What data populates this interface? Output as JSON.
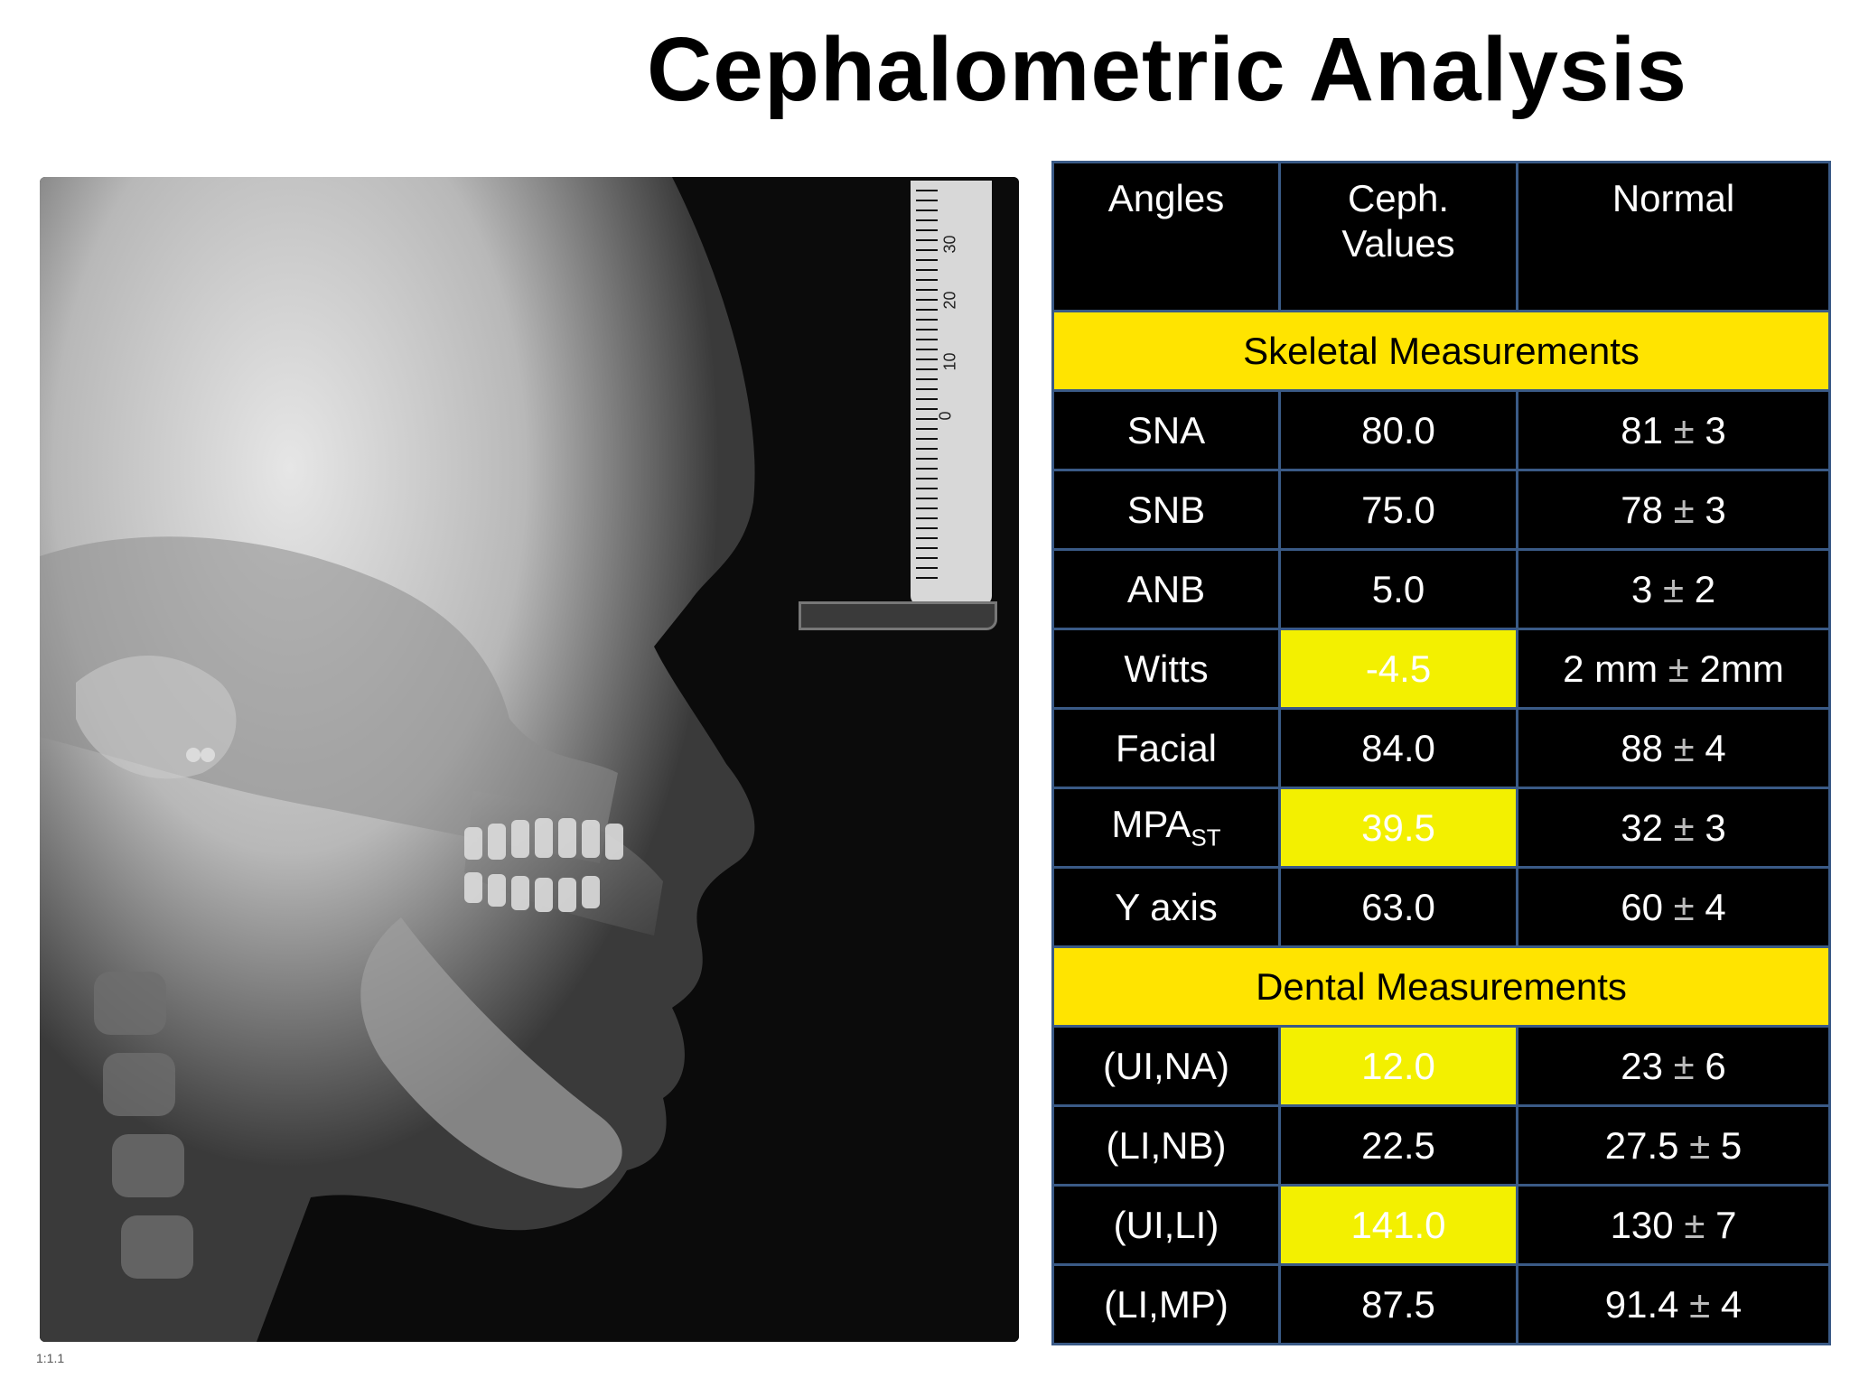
{
  "title": "Cephalometric Analysis",
  "image": {
    "ruler_labels": [
      "30",
      "20",
      "10",
      "0"
    ],
    "footer_mark": "1:1.1"
  },
  "table": {
    "headers": [
      "Angles",
      "Ceph. Values",
      "Normal"
    ],
    "skeletal_section": "Skeletal Measurements",
    "skeletal": [
      {
        "angle": "SNA",
        "sub": "",
        "value": "80.0",
        "highlight": false,
        "normal_a": "81",
        "pm": "±",
        "normal_b": "3"
      },
      {
        "angle": "SNB",
        "sub": "",
        "value": "75.0",
        "highlight": false,
        "normal_a": "78",
        "pm": "±",
        "normal_b": "3"
      },
      {
        "angle": "ANB",
        "sub": "",
        "value": "5.0",
        "highlight": false,
        "normal_a": "3",
        "pm": "±",
        "normal_b": "2"
      },
      {
        "angle": "Witts",
        "sub": "",
        "value": "-4.5",
        "highlight": true,
        "normal_a": "2 mm",
        "pm": "±",
        "normal_b": "2mm"
      },
      {
        "angle": "Facial",
        "sub": "",
        "value": "84.0",
        "highlight": false,
        "normal_a": "88",
        "pm": "±",
        "normal_b": "4"
      },
      {
        "angle": "MPA",
        "sub": "ST",
        "value": "39.5",
        "highlight": true,
        "normal_a": "32",
        "pm": "±",
        "normal_b": "3"
      },
      {
        "angle": "Y axis",
        "sub": "",
        "value": "63.0",
        "highlight": false,
        "normal_a": "60",
        "pm": "±",
        "normal_b": "4"
      }
    ],
    "dental_section": "Dental  Measurements",
    "dental": [
      {
        "angle": "(UI,NA)",
        "sub": "",
        "value": "12.0",
        "highlight": true,
        "normal_a": "23",
        "pm": "±",
        "normal_b": "6"
      },
      {
        "angle": "(LI,NB)",
        "sub": "",
        "value": "22.5",
        "highlight": false,
        "normal_a": "27.5",
        "pm": "±",
        "normal_b": "5"
      },
      {
        "angle": "(UI,LI)",
        "sub": "",
        "value": "141.0",
        "highlight": true,
        "normal_a": "130",
        "pm": "±",
        "normal_b": "7"
      },
      {
        "angle": "(LI,MP)",
        "sub": "",
        "value": "87.5",
        "highlight": false,
        "normal_a": "91.4",
        "pm": "±",
        "normal_b": "4"
      }
    ]
  },
  "colors": {
    "value_red": "#e0201c",
    "section_yellow": "#ffe400",
    "highlight_yellow": "#f3f000",
    "table_bg": "#000000",
    "grid_blue": "#3a5a86"
  }
}
